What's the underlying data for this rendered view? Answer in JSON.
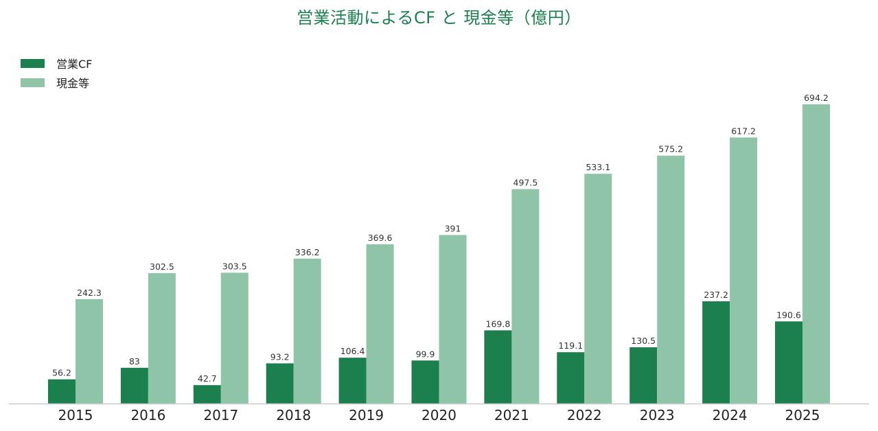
{
  "chart_data": {
    "type": "bar",
    "title": "営業活動によるCF と 現金等（億円）",
    "categories": [
      "2015",
      "2016",
      "2017",
      "2018",
      "2019",
      "2020",
      "2021",
      "2022",
      "2023",
      "2024",
      "2025"
    ],
    "series": [
      {
        "name": "営業CF",
        "color": "#1b7f4e",
        "values": [
          56.2,
          83,
          42.7,
          93.2,
          106.4,
          99.9,
          169.8,
          119.1,
          130.5,
          237.2,
          190.6
        ]
      },
      {
        "name": "現金等",
        "color": "#90c4a8",
        "values": [
          242.3,
          302.5,
          303.5,
          336.2,
          369.6,
          391,
          497.5,
          533.1,
          575.2,
          617.2,
          694.2
        ]
      }
    ],
    "ylim": [
      0,
      694.2
    ],
    "legend_position": "top-left",
    "grid": false
  }
}
